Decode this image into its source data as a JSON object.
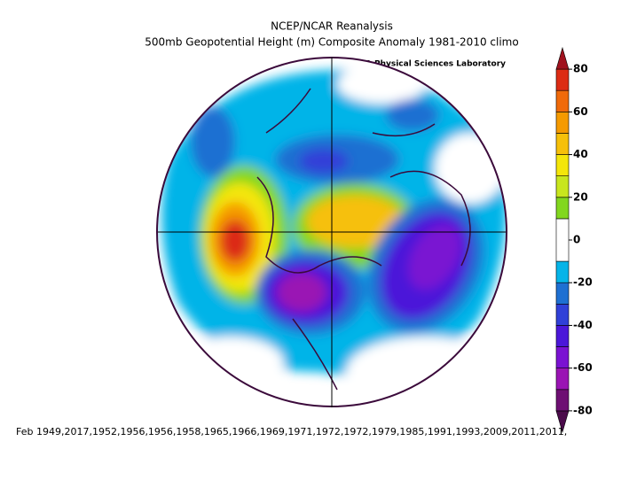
{
  "title": "NCEP/NCAR Reanalysis",
  "subtitle": "500mb Geopotential Height (m) Composite Anomaly 1981-2010 climo",
  "credit": "NOAA Physical Sciences Laboratory",
  "caption": "Feb 1949,2017,1952,1956,1956,1958,1965,1966,1969,1971,1972,1972,1979,1985,1991,1993,2009,2011,2011,",
  "colorbar": {
    "range": [
      -90,
      90
    ],
    "ticks": [
      80,
      60,
      40,
      20,
      0,
      -20,
      -40,
      -60,
      -80
    ],
    "levels": [
      -90,
      -80,
      -70,
      -60,
      -50,
      -40,
      -30,
      -20,
      -10,
      10,
      20,
      30,
      40,
      50,
      60,
      70,
      80,
      90
    ],
    "colors": [
      "#4b0b4b",
      "#6e0f73",
      "#9a14b4",
      "#7a12d2",
      "#4b17d9",
      "#3040d8",
      "#1e70d2",
      "#05b4e8",
      "#ffffff",
      "#82d71f",
      "#c8e61e",
      "#f4e60a",
      "#f6c00a",
      "#f59a00",
      "#f06a0a",
      "#dc2c14",
      "#a0121e"
    ]
  }
}
